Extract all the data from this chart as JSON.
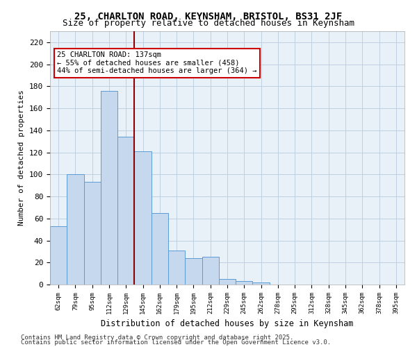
{
  "title1": "25, CHARLTON ROAD, KEYNSHAM, BRISTOL, BS31 2JF",
  "title2": "Size of property relative to detached houses in Keynsham",
  "xlabel": "Distribution of detached houses by size in Keynsham",
  "ylabel": "Number of detached properties",
  "categories": [
    "62sqm",
    "79sqm",
    "95sqm",
    "112sqm",
    "129sqm",
    "145sqm",
    "162sqm",
    "179sqm",
    "195sqm",
    "212sqm",
    "229sqm",
    "245sqm",
    "262sqm",
    "278sqm",
    "295sqm",
    "312sqm",
    "328sqm",
    "345sqm",
    "362sqm",
    "378sqm",
    "395sqm"
  ],
  "values": [
    53,
    100,
    93,
    176,
    134,
    121,
    65,
    31,
    24,
    25,
    5,
    3,
    2,
    0,
    0,
    0,
    0,
    0,
    0,
    0,
    0
  ],
  "bar_color": "#c5d8ed",
  "bar_edge_color": "#5b9bd5",
  "grid_color": "#c0cfe0",
  "background_color": "#e8f0f8",
  "vline_color": "#8b0000",
  "annotation_text": "25 CHARLTON ROAD: 137sqm\n← 55% of detached houses are smaller (458)\n44% of semi-detached houses are larger (364) →",
  "annotation_box_color": "#ffffff",
  "annotation_box_edge": "#cc0000",
  "ylim": [
    0,
    230
  ],
  "yticks": [
    0,
    20,
    40,
    60,
    80,
    100,
    120,
    140,
    160,
    180,
    200,
    220
  ],
  "footer1": "Contains HM Land Registry data © Crown copyright and database right 2025.",
  "footer2": "Contains public sector information licensed under the Open Government Licence v3.0."
}
